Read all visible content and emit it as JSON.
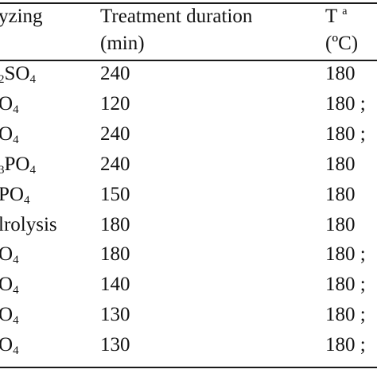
{
  "table": {
    "header": {
      "col1_line1": "yzing",
      "col2_line1": "Treatment duration",
      "col2_line2": "(min)",
      "col3_symbol": "T",
      "col3_sup": "a",
      "col3_line2": "(ºC)"
    },
    "rows": [
      {
        "reagent_prefix": "2",
        "reagent_main": "SO",
        "reagent_sub": "4",
        "duration": "240",
        "temperature": "180"
      },
      {
        "reagent_prefix": "",
        "reagent_main": "O",
        "reagent_sub": "4",
        "duration": "120",
        "temperature": "180 ;"
      },
      {
        "reagent_prefix": "",
        "reagent_main": "O",
        "reagent_sub": "4",
        "duration": "240",
        "temperature": "180 ;"
      },
      {
        "reagent_prefix": "3",
        "reagent_main": "PO",
        "reagent_sub": "4",
        "duration": "240",
        "temperature": "180"
      },
      {
        "reagent_prefix": "",
        "reagent_main": "PO",
        "reagent_sub": "4",
        "duration": "150",
        "temperature": "180"
      },
      {
        "reagent_prefix": "",
        "reagent_main": "lrolysis",
        "reagent_sub": "",
        "duration": "180",
        "temperature": "180"
      },
      {
        "reagent_prefix": "",
        "reagent_main": "O",
        "reagent_sub": "4",
        "duration": "180",
        "temperature": "180 ;"
      },
      {
        "reagent_prefix": "",
        "reagent_main": "O",
        "reagent_sub": "4",
        "duration": "140",
        "temperature": "180 ;"
      },
      {
        "reagent_prefix": "",
        "reagent_main": "O",
        "reagent_sub": "4",
        "duration": "130",
        "temperature": "180 ;"
      },
      {
        "reagent_prefix": "",
        "reagent_main": "O",
        "reagent_sub": "4",
        "duration": "130",
        "temperature": "180 ;"
      }
    ]
  }
}
